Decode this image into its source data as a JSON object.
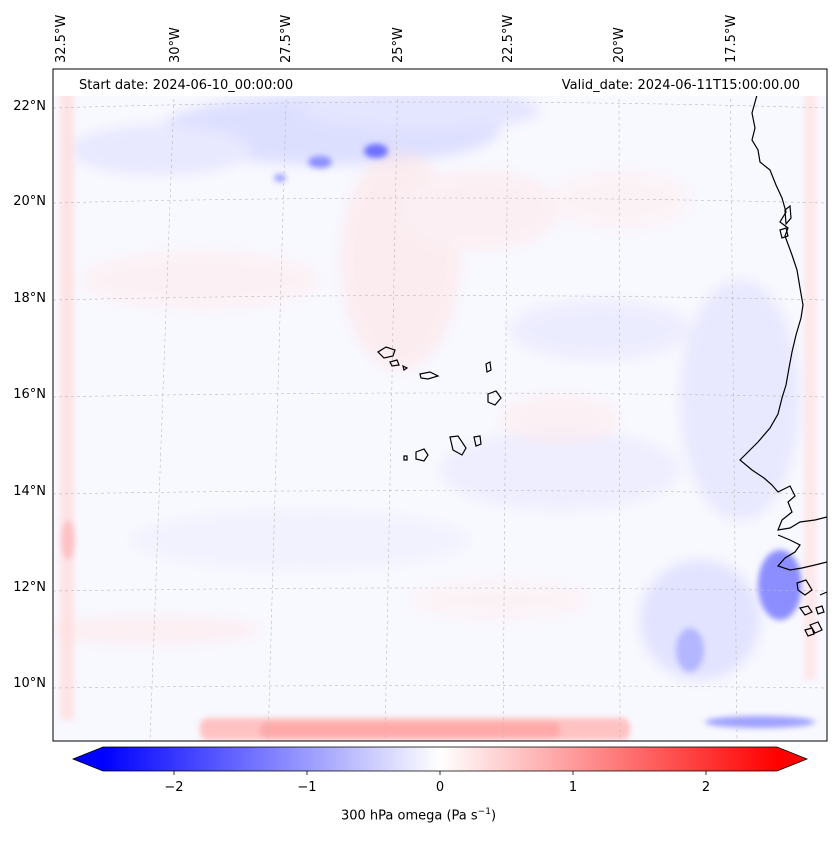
{
  "map": {
    "header": {
      "start_date": "Start date: 2024-06-10_00:00:00",
      "valid_date": "Valid_date: 2024-06-11T15:00:00.00"
    },
    "lon_labels": [
      "32.5°W",
      "30°W",
      "27.5°W",
      "25°W",
      "22.5°W",
      "20°W",
      "17.5°W"
    ],
    "lat_labels": [
      "22°N",
      "20°N",
      "18°N",
      "16°N",
      "14°N",
      "12°N",
      "10°N"
    ],
    "gridlines": true,
    "islands": "Cape Verde",
    "coastline": "West Africa"
  },
  "colorbar": {
    "label_prefix": "300 hPa omega (Pa s",
    "label_exp": "−1",
    "label_suffix": ")",
    "ticks": [
      "−2",
      "−1",
      "0",
      "1",
      "2"
    ],
    "min": -2.6,
    "max": 2.6,
    "colormap": "bwr",
    "low_color": "#0000ff",
    "mid_color": "#ffffff",
    "high_color": "#ff0000"
  }
}
